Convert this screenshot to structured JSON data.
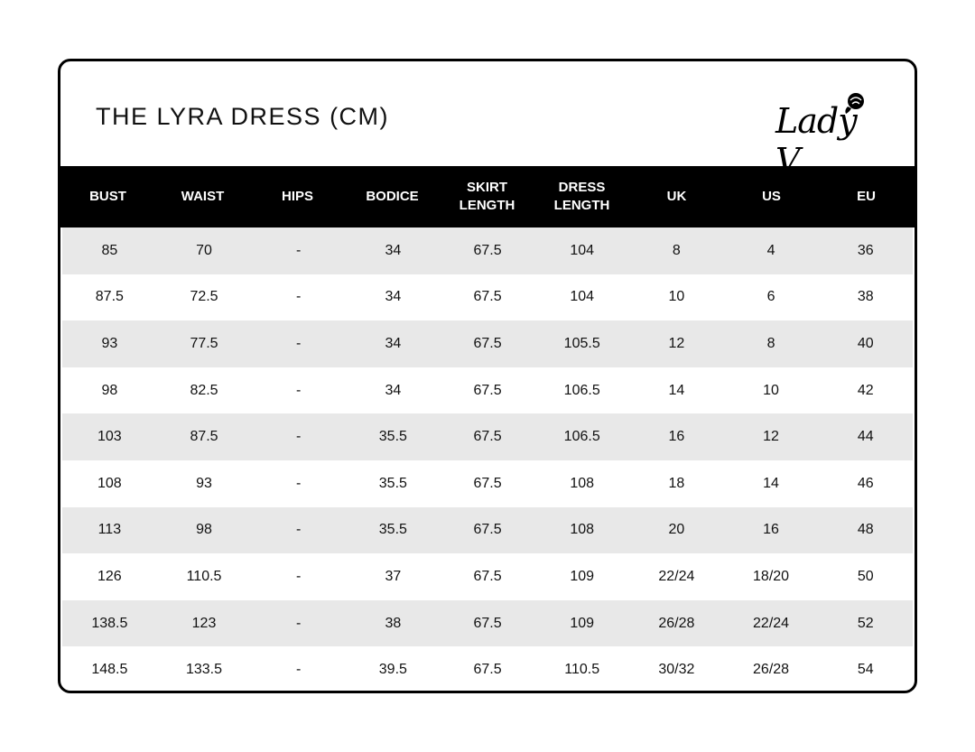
{
  "title": "THE LYRA DRESS (CM)",
  "logo": {
    "text": "Lady V",
    "icon": "rose-icon"
  },
  "colors": {
    "header_bg": "#000000",
    "header_text": "#ffffff",
    "stripe": "#e8e8e8"
  },
  "columns": [
    "BUST",
    "WAIST",
    "HIPS",
    "BODICE",
    "SKIRT LENGTH",
    "DRESS LENGTH",
    "UK",
    "US",
    "EU"
  ],
  "rows": [
    [
      "85",
      "70",
      "-",
      "34",
      "67.5",
      "104",
      "8",
      "4",
      "36"
    ],
    [
      "87.5",
      "72.5",
      "-",
      "34",
      "67.5",
      "104",
      "10",
      "6",
      "38"
    ],
    [
      "93",
      "77.5",
      "-",
      "34",
      "67.5",
      "105.5",
      "12",
      "8",
      "40"
    ],
    [
      "98",
      "82.5",
      "-",
      "34",
      "67.5",
      "106.5",
      "14",
      "10",
      "42"
    ],
    [
      "103",
      "87.5",
      "-",
      "35.5",
      "67.5",
      "106.5",
      "16",
      "12",
      "44"
    ],
    [
      "108",
      "93",
      "-",
      "35.5",
      "67.5",
      "108",
      "18",
      "14",
      "46"
    ],
    [
      "113",
      "98",
      "-",
      "35.5",
      "67.5",
      "108",
      "20",
      "16",
      "48"
    ],
    [
      "126",
      "110.5",
      "-",
      "37",
      "67.5",
      "109",
      "22/24",
      "18/20",
      "50"
    ],
    [
      "138.5",
      "123",
      "-",
      "38",
      "67.5",
      "109",
      "26/28",
      "22/24",
      "52"
    ],
    [
      "148.5",
      "133.5",
      "-",
      "39.5",
      "67.5",
      "110.5",
      "30/32",
      "26/28",
      "54"
    ]
  ]
}
